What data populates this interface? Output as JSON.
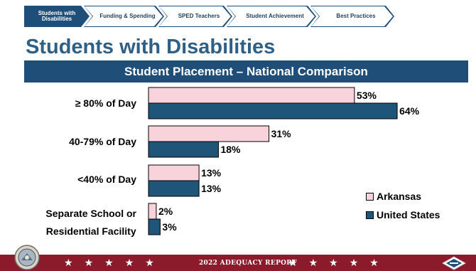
{
  "nav": {
    "items": [
      {
        "label": "Students with Disabilities",
        "active": true
      },
      {
        "label": "Funding & Spending",
        "active": false
      },
      {
        "label": "SPED Teachers",
        "active": false
      },
      {
        "label": "Student Achievement",
        "active": false
      },
      {
        "label": "Best Practices",
        "active": false
      }
    ]
  },
  "page": {
    "title": "Students with Disabilities",
    "subtitle": "Student Placement – National Comparison"
  },
  "chart_data": {
    "type": "bar",
    "orientation": "horizontal",
    "categories": [
      "≥ 80% of Day",
      "40-79% of Day",
      "<40% of Day",
      "Separate School or Residential Facility"
    ],
    "series": [
      {
        "name": "Arkansas",
        "values": [
          53,
          31,
          13,
          2
        ],
        "color": "#f8d3dc"
      },
      {
        "name": "United States",
        "values": [
          64,
          18,
          13,
          3
        ],
        "color": "#1f5578"
      }
    ],
    "data_labels": [
      [
        "53%",
        "31%",
        "13%",
        "2%"
      ],
      [
        "64%",
        "18%",
        "13%",
        "3%"
      ]
    ],
    "title": "Student Placement – National Comparison",
    "xlim": [
      0,
      64
    ],
    "legend_position": "bottom-right",
    "grid": false
  },
  "legend": {
    "arkansas": "Arkansas",
    "united_states": "United States"
  },
  "footer": {
    "text": "2022 ADEQUACY REPORT",
    "accent": "#8b1a2b"
  },
  "icons": [
    "arkansas-seal-icon",
    "arkansas-diamond-icon",
    "star-icon"
  ]
}
